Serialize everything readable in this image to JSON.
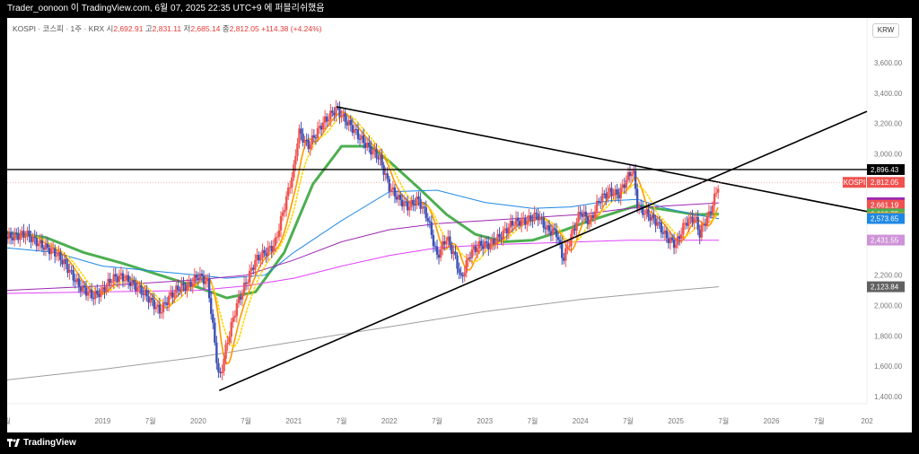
{
  "header": {
    "watermark_text": "Trader_oonoon 이 TradingView.com, 6월 07, 2025 22:35 UTC+9 에 퍼블리쉬했음"
  },
  "legend": {
    "symbol": "KOSPI · 코스피 · 1주 · KRX",
    "open_label": "시",
    "open": "2,692.91",
    "high_label": "고",
    "high": "2,831.11",
    "low_label": "저",
    "low": "2,685.14",
    "close_label": "종",
    "close": "2,812.05",
    "change": "+114.38 (+4.24%)"
  },
  "currency_button": "KRW",
  "footer": {
    "brand": "TradingView"
  },
  "colors": {
    "up": "#ef5350",
    "down": "#3f51b5",
    "green": "#4caf50",
    "yellow": "#ffd600",
    "orange": "#ff9800",
    "blue": "#1e88e5",
    "purple": "#9c27b0",
    "pink": "#e040fb",
    "gray": "#9e9e9e"
  },
  "chart_data": {
    "type": "line",
    "yaxis": {
      "min": 1350,
      "max": 3800,
      "ticks": [
        "3,600.00",
        "3,400.00",
        "3,200.00",
        "3,000.00",
        "2,200.00",
        "2,000.00",
        "1,800.00",
        "1,600.00",
        "1,400.00"
      ],
      "tick_values": [
        3600,
        3400,
        3200,
        3000,
        2200,
        2000,
        1800,
        1600,
        1400
      ]
    },
    "xaxis": {
      "ticks": [
        {
          "label": "월",
          "t": 2018.0
        },
        {
          "label": "2019",
          "t": 2019.0
        },
        {
          "label": "7월",
          "t": 2019.5
        },
        {
          "label": "2020",
          "t": 2020.0
        },
        {
          "label": "7월",
          "t": 2020.5
        },
        {
          "label": "2021",
          "t": 2021.0
        },
        {
          "label": "7월",
          "t": 2021.5
        },
        {
          "label": "2022",
          "t": 2022.0
        },
        {
          "label": "7월",
          "t": 2022.5
        },
        {
          "label": "2023",
          "t": 2023.0
        },
        {
          "label": "7월",
          "t": 2023.5
        },
        {
          "label": "2024",
          "t": 2024.0
        },
        {
          "label": "7월",
          "t": 2024.5
        },
        {
          "label": "2025",
          "t": 2025.0
        },
        {
          "label": "7월",
          "t": 2025.5
        },
        {
          "label": "2026",
          "t": 2026.0
        },
        {
          "label": "7월",
          "t": 2026.5
        },
        {
          "label": "202",
          "t": 2027.0
        }
      ]
    },
    "price_series": {
      "name": "KOSPI",
      "t": [
        2018.0,
        2018.2,
        2018.35,
        2018.5,
        2018.6,
        2018.75,
        2018.9,
        2019.0,
        2019.1,
        2019.2,
        2019.3,
        2019.45,
        2019.6,
        2019.7,
        2019.8,
        2019.9,
        2020.0,
        2020.1,
        2020.22,
        2020.3,
        2020.4,
        2020.5,
        2020.6,
        2020.7,
        2020.8,
        2020.9,
        2021.0,
        2021.05,
        2021.15,
        2021.3,
        2021.45,
        2021.5,
        2021.6,
        2021.7,
        2021.8,
        2021.9,
        2022.0,
        2022.1,
        2022.2,
        2022.3,
        2022.4,
        2022.5,
        2022.6,
        2022.7,
        2022.75,
        2022.85,
        2022.95,
        2023.05,
        2023.15,
        2023.3,
        2023.45,
        2023.55,
        2023.65,
        2023.75,
        2023.82,
        2023.9,
        2024.0,
        2024.1,
        2024.2,
        2024.3,
        2024.4,
        2024.5,
        2024.55,
        2024.6,
        2024.7,
        2024.8,
        2024.9,
        2025.0,
        2025.1,
        2025.2,
        2025.25,
        2025.3,
        2025.35,
        2025.4,
        2025.45
      ],
      "values": [
        2450,
        2470,
        2400,
        2350,
        2280,
        2130,
        2060,
        2100,
        2180,
        2190,
        2150,
        2070,
        1960,
        2060,
        2120,
        2130,
        2200,
        2150,
        1500,
        1750,
        2000,
        2150,
        2300,
        2350,
        2400,
        2650,
        2900,
        3150,
        3050,
        3200,
        3300,
        3250,
        3180,
        3100,
        3030,
        2970,
        2780,
        2700,
        2650,
        2700,
        2580,
        2320,
        2450,
        2300,
        2170,
        2350,
        2400,
        2400,
        2450,
        2550,
        2560,
        2600,
        2500,
        2480,
        2300,
        2450,
        2620,
        2550,
        2700,
        2750,
        2730,
        2850,
        2900,
        2650,
        2600,
        2550,
        2450,
        2400,
        2550,
        2580,
        2470,
        2550,
        2600,
        2700,
        2812
      ]
    },
    "ma_series": [
      {
        "name": "MA-green",
        "color": "#4caf50",
        "t": [
          2018.0,
          2018.4,
          2018.8,
          2019.2,
          2019.6,
          2020.0,
          2020.3,
          2020.6,
          2020.9,
          2021.2,
          2021.5,
          2021.8,
          2022.0,
          2022.3,
          2022.6,
          2022.9,
          2023.2,
          2023.5,
          2023.8,
          2024.1,
          2024.4,
          2024.6,
          2024.8,
          2025.0,
          2025.2,
          2025.45
        ],
        "values": [
          2480,
          2450,
          2350,
          2280,
          2200,
          2120,
          2050,
          2090,
          2350,
          2800,
          3050,
          3050,
          2950,
          2780,
          2600,
          2470,
          2420,
          2430,
          2490,
          2560,
          2620,
          2660,
          2640,
          2620,
          2600,
          2603
        ]
      },
      {
        "name": "MA-blue",
        "color": "#1e88e5",
        "t": [
          2018.0,
          2018.5,
          2019.0,
          2019.5,
          2020.0,
          2020.3,
          2020.7,
          2021.0,
          2021.5,
          2022.0,
          2022.5,
          2023.0,
          2023.5,
          2023.9,
          2024.3,
          2024.6,
          2024.9,
          2025.2,
          2025.45
        ],
        "values": [
          2380,
          2350,
          2260,
          2230,
          2200,
          2180,
          2200,
          2350,
          2560,
          2750,
          2760,
          2680,
          2640,
          2650,
          2690,
          2700,
          2640,
          2600,
          2573
        ]
      },
      {
        "name": "MA-purple",
        "color": "#9c27b0",
        "t": [
          2018.0,
          2019.0,
          2020.0,
          2020.5,
          2021.0,
          2021.5,
          2022.0,
          2022.5,
          2023.0,
          2023.5,
          2024.0,
          2024.5,
          2025.0,
          2025.45
        ],
        "values": [
          2100,
          2130,
          2170,
          2200,
          2300,
          2420,
          2500,
          2540,
          2560,
          2580,
          2600,
          2640,
          2660,
          2677
        ]
      },
      {
        "name": "MA-pink",
        "color": "#e040fb",
        "t": [
          2018.0,
          2019.0,
          2020.0,
          2020.5,
          2021.0,
          2021.5,
          2022.0,
          2022.5,
          2023.0,
          2023.5,
          2024.0,
          2024.5,
          2025.0,
          2025.45
        ],
        "values": [
          2080,
          2090,
          2100,
          2130,
          2180,
          2260,
          2330,
          2380,
          2400,
          2410,
          2420,
          2430,
          2430,
          2431
        ]
      },
      {
        "name": "MA-gray",
        "color": "#9e9e9e",
        "t": [
          2018.0,
          2019.0,
          2020.0,
          2021.0,
          2022.0,
          2023.0,
          2024.0,
          2025.0,
          2025.45
        ],
        "values": [
          1510,
          1580,
          1660,
          1760,
          1860,
          1960,
          2040,
          2100,
          2124
        ]
      }
    ],
    "trendlines": [
      {
        "name": "upper-resistance",
        "t1": 2021.45,
        "v1": 3310,
        "t2": 2027.0,
        "v2": 2620
      },
      {
        "name": "lower-support",
        "t1": 2020.22,
        "v1": 1440,
        "t2": 2027.0,
        "v2": 3280
      }
    ],
    "hline": {
      "value": 2896.43
    },
    "price_labels": [
      {
        "text": "2,896.43",
        "color": "#000000",
        "value": 2896.43
      },
      {
        "text": "KOSPI",
        "text2": "2,812.05",
        "color": "#ef5350",
        "value": 2812.05
      },
      {
        "text": "2,677.34",
        "color": "#9c27b0",
        "value": 2677.34
      },
      {
        "text": "2,661.19",
        "color": "#ef5350",
        "value": 2661.19
      },
      {
        "text": "2,603.75",
        "color": "#4caf50",
        "value": 2603.75
      },
      {
        "text": "2,579.36",
        "color": "#ff9800",
        "value": 2579.36
      },
      {
        "text": "2,573.95",
        "color": "#ffd600",
        "value": 2573.95
      },
      {
        "text": "2,573.65",
        "color": "#1e88e5",
        "value": 2573.65
      },
      {
        "text": "2,431.55",
        "color": "#ce93d8",
        "value": 2431.55
      },
      {
        "text": "2,123.84",
        "color": "#616161",
        "value": 2123.84
      }
    ]
  }
}
